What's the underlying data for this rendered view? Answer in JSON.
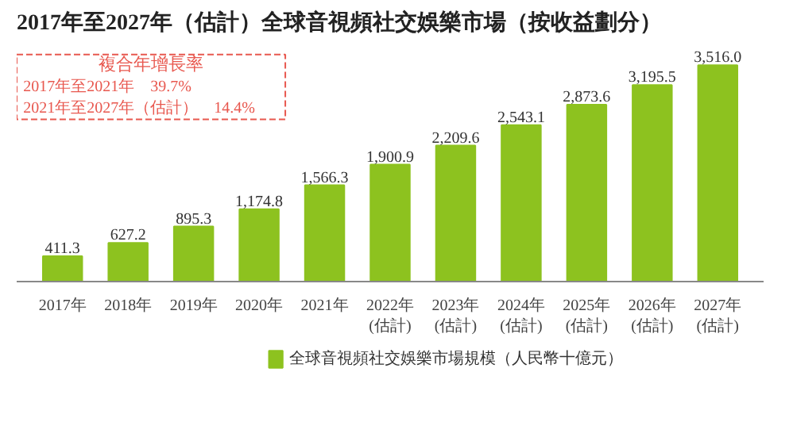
{
  "chart_data": {
    "type": "bar",
    "title": "2017年至2027年（估計）全球音視頻社交娛樂市場（按收益劃分）",
    "categories": [
      "2017年",
      "2018年",
      "2019年",
      "2020年",
      "2021年",
      "2022年\n(估計)",
      "2023年\n(估計)",
      "2024年\n(估計)",
      "2025年\n(估計)",
      "2026年\n(估計)",
      "2027年\n(估計)"
    ],
    "series": [
      {
        "name": "全球音視頻社交娛樂市場規模（人民幣十億元）",
        "color": "#8dc21f",
        "values": [
          411.3,
          627.2,
          895.3,
          1174.8,
          1566.3,
          1900.9,
          2209.6,
          2543.1,
          2873.6,
          3195.5,
          3516.0
        ],
        "value_labels": [
          "411.3",
          "627.2",
          "895.3",
          "1,174.8",
          "1,566.3",
          "1,900.9",
          "2,209.6",
          "2,543.1",
          "2,873.6",
          "3,195.5",
          "3,516.0"
        ]
      }
    ],
    "annotations": [
      "複合年增長率",
      "2017年至2021年　39.7%",
      "2021年至2027年（估計）　14.4%"
    ],
    "legend": "bottom"
  }
}
